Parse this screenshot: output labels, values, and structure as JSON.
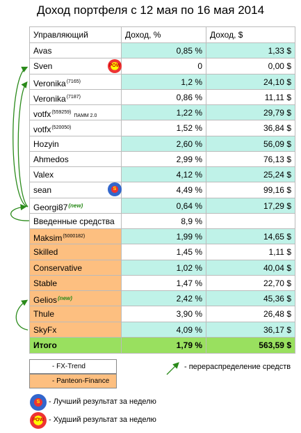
{
  "title": "Доход портфеля с 12 мая по 16 мая 2014",
  "table": {
    "header": [
      "Управляющий",
      "Доход, %",
      "Доход, $"
    ],
    "rows": [
      {
        "name": "Avas",
        "pct": "0,85 %",
        "usd": "1,33 $",
        "group": "FX-Trend"
      },
      {
        "name": "Sven",
        "pct": "0",
        "usd": "0,00 $",
        "group": "FX-Trend"
      },
      {
        "name": "Veronika",
        "note": "(7165)",
        "pct": "1,2 %",
        "usd": "24,10 $",
        "group": "FX-Trend"
      },
      {
        "name": "Veronika",
        "note": "(7187)",
        "pct": "0,86 %",
        "usd": "11,11 $",
        "group": "FX-Trend"
      },
      {
        "name": "votfx",
        "note": "(559259)",
        "note2": "ПАММ 2.0",
        "pct": "1,22 %",
        "usd": "29,79 $",
        "group": "FX-Trend"
      },
      {
        "name": "votfx",
        "note": "(520050)",
        "pct": "1,52 %",
        "usd": "36,84 $",
        "group": "FX-Trend"
      },
      {
        "name": "Hozyin",
        "pct": "2,60 %",
        "usd": "56,09 $",
        "group": "FX-Trend"
      },
      {
        "name": "Ahmedos",
        "pct": "2,99 %",
        "usd": "76,13 $",
        "group": "FX-Trend"
      },
      {
        "name": "Valex",
        "pct": "4,12 %",
        "usd": "25,24 $",
        "group": "FX-Trend"
      },
      {
        "name": "sean",
        "pct": "4,49 %",
        "usd": "99,16 $",
        "group": "FX-Trend"
      },
      {
        "name": "Georgi87",
        "new": "(new)",
        "pct": "0,64 %",
        "usd": "17,29 $",
        "group": "FX-Trend"
      },
      {
        "name": "Введенные средства",
        "pct": "8,9 %",
        "group": "FX-Trend"
      },
      {
        "name": "Maksim",
        "note": "(5000182)",
        "pct": "1,99 %",
        "usd": "14,65 $",
        "group": "Panteon-Finance"
      },
      {
        "name": "Skilled",
        "pct": "1,45 %",
        "usd": "1,11 $",
        "group": "Panteon-Finance"
      },
      {
        "name": "Conservative",
        "pct": "1,02 %",
        "usd": "40,04 $",
        "group": "Panteon-Finance"
      },
      {
        "name": "Stable",
        "pct": "1,47 %",
        "usd": "22,70 $",
        "group": "Panteon-Finance"
      },
      {
        "name": "Gelios",
        "new": "(new)",
        "pct": "2,42 %",
        "usd": "45,36 $",
        "group": "Panteon-Finance"
      },
      {
        "name": "Thule",
        "pct": "3,90 %",
        "usd": "26,48 $",
        "group": "Panteon-Finance"
      },
      {
        "name": "SkyFx",
        "pct": "4,09 %",
        "usd": "36,17 $",
        "group": "Panteon-Finance"
      }
    ],
    "total": [
      "Итого",
      "1,79 %",
      "563,59 $"
    ]
  },
  "legend": {
    "groups": [
      "- FX-Trend",
      "- Panteon-Finance"
    ],
    "arrow": "-  перераспределение средств",
    "best": "- Лучший результат за неделю",
    "worst": "- Худший результат за неделю"
  }
}
